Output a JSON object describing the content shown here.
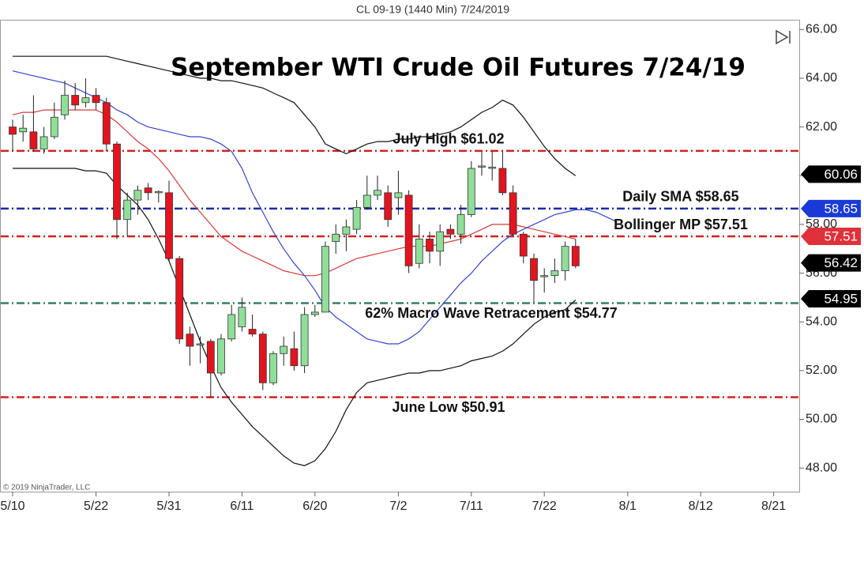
{
  "chart_data": {
    "type": "candlestick",
    "header": "CL 09-19 (1440 Min)  7/24/2019",
    "title": "September WTI Crude Oil Futures 7/24/19",
    "copyright": "© 2019 NinjaTrader, LLC",
    "categories": [
      "5/10",
      null,
      null,
      null,
      null,
      null,
      null,
      null,
      "5/22",
      null,
      null,
      null,
      null,
      null,
      null,
      "5/31",
      null,
      null,
      null,
      null,
      null,
      null,
      "6/11",
      null,
      null,
      null,
      null,
      null,
      null,
      "6/20",
      null,
      null,
      null,
      null,
      null,
      null,
      null,
      "7/2",
      null,
      null,
      null,
      null,
      null,
      null,
      "7/11",
      null,
      null,
      null,
      null,
      null,
      null,
      "7/22",
      null,
      null,
      null,
      null,
      null,
      null,
      null,
      "8/1",
      null,
      null,
      null,
      null,
      null,
      null,
      "8/12",
      null,
      null,
      null,
      null,
      null,
      null,
      "8/21",
      null
    ],
    "open": [
      62.0,
      61.8,
      61.8,
      61.1,
      61.6,
      62.5,
      63.3,
      63.0,
      63.3,
      63.0,
      61.3,
      58.2,
      59.0,
      59.5,
      59.3,
      59.3,
      56.6,
      53.5,
      53.1,
      53.2,
      51.9,
      53.3,
      53.8,
      53.7,
      53.5,
      51.5,
      52.7,
      52.9,
      52.2,
      54.3,
      54.4,
      57.3,
      57.6,
      57.8,
      58.7,
      59.2,
      59.3,
      59.1,
      59.2,
      56.4,
      57.4,
      56.9,
      57.8,
      57.6,
      58.4,
      60.4,
      60.35,
      60.3,
      59.3,
      57.6,
      56.6,
      55.9,
      55.9,
      56.1,
      57.1,
      null,
      null,
      null,
      null,
      null,
      null,
      null,
      null,
      null,
      null,
      null,
      null,
      null,
      null,
      null,
      null,
      null,
      null,
      null,
      null
    ],
    "high": [
      62.3,
      62.5,
      63.3,
      62.0,
      63.0,
      63.9,
      63.8,
      64.0,
      63.6,
      63.2,
      61.4,
      59.3,
      59.6,
      59.7,
      59.4,
      59.8,
      56.7,
      53.8,
      53.4,
      53.3,
      53.5,
      54.7,
      55.0,
      54.3,
      53.6,
      52.8,
      53.4,
      53.6,
      54.6,
      54.7,
      57.3,
      58.0,
      58.2,
      59.0,
      60.0,
      60.0,
      59.6,
      60.2,
      59.4,
      58.0,
      57.7,
      58.0,
      58.0,
      58.8,
      60.6,
      61.0,
      61.0,
      61.0,
      59.6,
      57.7,
      56.8,
      56.2,
      56.6,
      57.3,
      57.4,
      null,
      null,
      null,
      null,
      null,
      null,
      null,
      null,
      null,
      null,
      null,
      null,
      null,
      null,
      null,
      null,
      null,
      null,
      null,
      null
    ],
    "low": [
      61.0,
      61.4,
      61.0,
      60.9,
      61.5,
      62.3,
      62.7,
      62.8,
      62.7,
      61.0,
      57.4,
      57.5,
      58.4,
      59.0,
      58.9,
      56.5,
      53.1,
      52.2,
      52.3,
      50.9,
      51.8,
      53.2,
      53.6,
      53.4,
      51.2,
      51.4,
      52.2,
      52.0,
      51.9,
      54.2,
      54.4,
      56.8,
      56.9,
      57.6,
      58.6,
      59.0,
      57.9,
      58.4,
      56.0,
      56.2,
      56.4,
      56.3,
      57.4,
      57.2,
      58.3,
      60.0,
      59.8,
      59.2,
      57.5,
      56.4,
      54.8,
      55.2,
      55.6,
      55.7,
      56.2,
      null,
      null,
      null,
      null,
      null,
      null,
      null,
      null,
      null,
      null,
      null,
      null,
      null,
      null,
      null,
      null,
      null,
      null,
      null,
      null
    ],
    "close": [
      61.7,
      61.95,
      61.1,
      61.6,
      62.4,
      63.3,
      62.9,
      63.2,
      63.0,
      61.3,
      58.2,
      59.0,
      59.4,
      59.3,
      59.35,
      56.6,
      53.3,
      53.0,
      53.1,
      51.9,
      53.3,
      54.3,
      54.6,
      53.5,
      51.5,
      52.7,
      53.0,
      52.2,
      54.3,
      54.4,
      57.1,
      57.6,
      57.9,
      58.7,
      59.2,
      59.4,
      58.2,
      59.3,
      56.3,
      57.4,
      56.9,
      57.7,
      57.6,
      58.4,
      60.3,
      60.4,
      60.35,
      59.3,
      57.6,
      56.7,
      55.7,
      55.9,
      56.1,
      57.1,
      56.3,
      null,
      null,
      null,
      null,
      null,
      null,
      null,
      null,
      null,
      null,
      null,
      null,
      null,
      null,
      null,
      null,
      null,
      null,
      null,
      null
    ],
    "up_color": "#8fdf98",
    "down_color": "#e3141e",
    "lines": [
      {
        "color": "#111111",
        "values": [
          64.9,
          64.9,
          64.9,
          64.9,
          64.9,
          64.9,
          64.9,
          64.9,
          64.9,
          64.9,
          64.8,
          64.7,
          64.6,
          64.5,
          64.4,
          64.3,
          64.2,
          64.1,
          64.0,
          64.0,
          63.9,
          63.9,
          63.8,
          63.7,
          63.6,
          63.4,
          63.2,
          63.0,
          62.5,
          62.0,
          61.3,
          61.1,
          60.9,
          61.1,
          61.3,
          61.4,
          61.4,
          61.5,
          61.5,
          61.6,
          61.6,
          61.7,
          61.8,
          62.0,
          62.3,
          62.6,
          62.8,
          63.1,
          62.9,
          62.4,
          61.8,
          61.2,
          60.7,
          60.3,
          60.0,
          null,
          null,
          null,
          null,
          null,
          null,
          null,
          null,
          null,
          null,
          null,
          null,
          null,
          null,
          null,
          null,
          null,
          null,
          null,
          null
        ]
      },
      {
        "color": "#111111",
        "values": [
          60.3,
          60.3,
          60.3,
          60.3,
          60.3,
          60.3,
          60.3,
          60.2,
          60.2,
          60.1,
          59.6,
          59.2,
          58.8,
          58.2,
          57.4,
          56.5,
          55.4,
          54.3,
          53.2,
          52.2,
          51.3,
          50.7,
          50.2,
          49.7,
          49.3,
          48.9,
          48.5,
          48.2,
          48.1,
          48.3,
          48.8,
          49.5,
          50.4,
          51.1,
          51.5,
          51.6,
          51.7,
          51.8,
          51.9,
          51.9,
          52.0,
          52.0,
          52.1,
          52.2,
          52.4,
          52.5,
          52.6,
          52.8,
          53.1,
          53.5,
          53.9,
          54.2,
          54.4,
          54.5,
          54.9,
          null,
          null,
          null,
          null,
          null,
          null,
          null,
          null,
          null,
          null,
          null,
          null,
          null,
          null,
          null,
          null,
          null,
          null,
          null,
          null
        ]
      },
      {
        "color": "#d93a3a",
        "values": [
          62.5,
          62.6,
          62.6,
          62.7,
          62.7,
          62.7,
          62.7,
          62.7,
          62.7,
          62.5,
          62.2,
          61.8,
          61.4,
          61.1,
          60.7,
          60.2,
          59.6,
          59.0,
          58.5,
          58.0,
          57.5,
          57.2,
          56.9,
          56.7,
          56.5,
          56.3,
          56.1,
          56.0,
          55.9,
          55.9,
          56.0,
          56.2,
          56.4,
          56.6,
          56.7,
          56.8,
          56.9,
          57.0,
          57.1,
          57.1,
          57.1,
          57.2,
          57.3,
          57.4,
          57.6,
          57.8,
          58.0,
          58.0,
          58.0,
          57.9,
          57.8,
          57.7,
          57.6,
          57.5,
          57.4,
          null,
          null,
          null,
          null,
          null,
          null,
          null,
          null,
          null,
          null,
          null,
          null,
          null,
          null,
          null,
          null,
          null,
          null,
          null,
          null
        ]
      },
      {
        "color": "#3545d0",
        "values": [
          64.3,
          64.2,
          64.1,
          64.0,
          63.9,
          63.8,
          63.6,
          63.4,
          63.2,
          63.0,
          62.7,
          62.5,
          62.2,
          62.0,
          61.9,
          61.8,
          61.7,
          61.6,
          61.6,
          61.5,
          61.3,
          61.0,
          60.3,
          59.3,
          58.5,
          57.7,
          57.0,
          56.4,
          55.9,
          55.3,
          54.6,
          54.2,
          53.9,
          53.6,
          53.3,
          53.2,
          53.1,
          53.1,
          53.3,
          53.6,
          54.1,
          54.6,
          55.1,
          55.6,
          56.0,
          56.5,
          56.9,
          57.3,
          57.6,
          57.8,
          58.0,
          58.2,
          58.4,
          58.5,
          58.6,
          58.6,
          58.5,
          58.3,
          58.1,
          null,
          null,
          null,
          null,
          null,
          null,
          null,
          null,
          null,
          null,
          null,
          null,
          null,
          null,
          null,
          null
        ]
      }
    ],
    "levels": [
      {
        "value": 61.02,
        "label": "July High $61.02",
        "color": "#d42020"
      },
      {
        "value": 58.65,
        "label": "Daily SMA $58.65",
        "color": "#1a2aa8"
      },
      {
        "value": 57.51,
        "label": "Bollinger MP $57.51",
        "color": "#d42020"
      },
      {
        "value": 54.77,
        "label": "62% Macro Wave Retracement $54.77",
        "color": "#3a7a68"
      },
      {
        "value": 50.91,
        "label": "June Low $50.91",
        "color": "#d42020"
      }
    ],
    "price_markers": [
      {
        "value": 60.06,
        "color": "#000000"
      },
      {
        "value": 58.65,
        "color": "#1a3ad8"
      },
      {
        "value": 57.51,
        "color": "#e0303a"
      },
      {
        "value": 56.42,
        "color": "#000000"
      },
      {
        "value": 54.95,
        "color": "#000000"
      }
    ],
    "ylim": [
      47,
      66.4
    ],
    "yticks": [
      {
        "value": 66,
        "label": "66.00"
      },
      {
        "value": 64,
        "label": "64.00"
      },
      {
        "value": 62,
        "label": "62.00"
      },
      {
        "value": 60,
        "label": "60.00"
      },
      {
        "value": 58,
        "label": "58.00"
      },
      {
        "value": 56,
        "label": "56.00"
      },
      {
        "value": 54,
        "label": "54.00"
      },
      {
        "value": 52,
        "label": "52.00"
      },
      {
        "value": 50,
        "label": "50.00"
      },
      {
        "value": 48,
        "label": "48.00"
      }
    ]
  }
}
